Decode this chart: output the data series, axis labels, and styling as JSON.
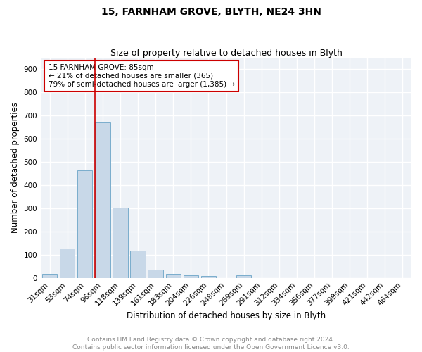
{
  "title": "15, FARNHAM GROVE, BLYTH, NE24 3HN",
  "subtitle": "Size of property relative to detached houses in Blyth",
  "xlabel": "Distribution of detached houses by size in Blyth",
  "ylabel": "Number of detached properties",
  "categories": [
    "31sqm",
    "53sqm",
    "74sqm",
    "96sqm",
    "118sqm",
    "139sqm",
    "161sqm",
    "183sqm",
    "204sqm",
    "226sqm",
    "248sqm",
    "269sqm",
    "291sqm",
    "312sqm",
    "334sqm",
    "356sqm",
    "377sqm",
    "399sqm",
    "421sqm",
    "442sqm",
    "464sqm"
  ],
  "values": [
    18,
    127,
    465,
    672,
    302,
    118,
    35,
    18,
    10,
    8,
    0,
    10,
    0,
    0,
    0,
    0,
    0,
    0,
    0,
    0,
    0
  ],
  "bar_color": "#c8d8e8",
  "bar_edge_color": "#7aadcc",
  "background_color": "#eef2f7",
  "grid_color": "#ffffff",
  "vline_color": "#cc0000",
  "vline_x_pos": 2.57,
  "annotation_text": "15 FARNHAM GROVE: 85sqm\n← 21% of detached houses are smaller (365)\n79% of semi-detached houses are larger (1,385) →",
  "annotation_box_edgecolor": "#cc0000",
  "ylim": [
    0,
    950
  ],
  "yticks": [
    0,
    100,
    200,
    300,
    400,
    500,
    600,
    700,
    800,
    900
  ],
  "footer": "Contains HM Land Registry data © Crown copyright and database right 2024.\nContains public sector information licensed under the Open Government Licence v3.0.",
  "title_fontsize": 10,
  "subtitle_fontsize": 9,
  "axis_label_fontsize": 8.5,
  "tick_fontsize": 7.5,
  "annotation_fontsize": 7.5,
  "footer_fontsize": 6.5
}
